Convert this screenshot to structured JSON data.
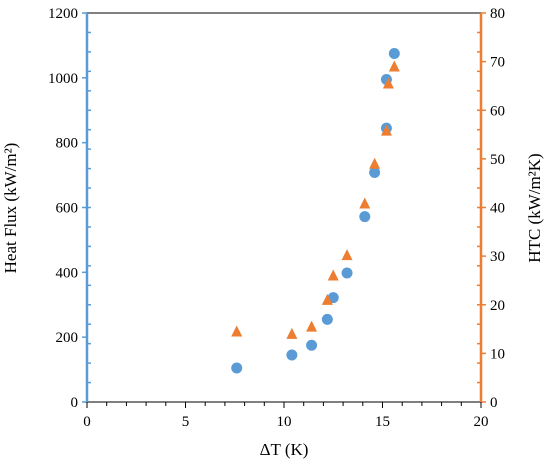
{
  "chart_data": {
    "type": "scatter",
    "xlabel": "ΔT (K)",
    "ylabel_left": "Heat Flux (kW/m²)",
    "ylabel_right": "HTC (kW/m²K)",
    "xlim": [
      0,
      20
    ],
    "ylim_left": [
      0,
      1200
    ],
    "ylim_right": [
      0,
      80
    ],
    "x_ticks": [
      0,
      5,
      10,
      15,
      20
    ],
    "y_ticks_left": [
      0,
      200,
      400,
      600,
      800,
      1000,
      1200
    ],
    "y_ticks_right": [
      0,
      10,
      20,
      30,
      40,
      50,
      60,
      70,
      80
    ],
    "grid": false,
    "legend": "none",
    "colors": {
      "left_axis": "#5b9bd5",
      "right_axis": "#ed7d31",
      "frame": "#000000"
    },
    "series": [
      {
        "axis": "left",
        "marker": "circle",
        "color": "#5b9bd5",
        "points": [
          {
            "x": 7.6,
            "y": 105
          },
          {
            "x": 10.4,
            "y": 145
          },
          {
            "x": 11.4,
            "y": 175
          },
          {
            "x": 12.2,
            "y": 255
          },
          {
            "x": 12.5,
            "y": 322
          },
          {
            "x": 13.2,
            "y": 398
          },
          {
            "x": 14.1,
            "y": 572
          },
          {
            "x": 14.6,
            "y": 708
          },
          {
            "x": 15.2,
            "y": 845
          },
          {
            "x": 15.2,
            "y": 995
          },
          {
            "x": 15.6,
            "y": 1075
          }
        ]
      },
      {
        "axis": "right",
        "marker": "triangle",
        "color": "#ed7d31",
        "points": [
          {
            "x": 7.6,
            "y": 14.5
          },
          {
            "x": 10.4,
            "y": 14.0
          },
          {
            "x": 11.4,
            "y": 15.5
          },
          {
            "x": 12.2,
            "y": 21.0
          },
          {
            "x": 12.5,
            "y": 26.0
          },
          {
            "x": 13.2,
            "y": 30.2
          },
          {
            "x": 14.1,
            "y": 40.8
          },
          {
            "x": 14.6,
            "y": 49.0
          },
          {
            "x": 15.2,
            "y": 55.8
          },
          {
            "x": 15.3,
            "y": 65.5
          },
          {
            "x": 15.6,
            "y": 69.0
          }
        ]
      }
    ]
  }
}
